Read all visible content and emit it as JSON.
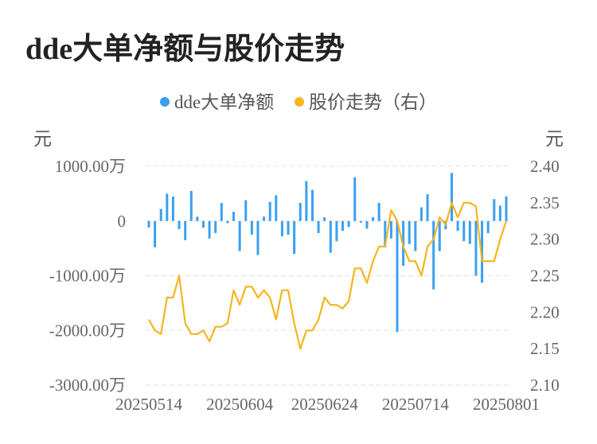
{
  "chart_data": {
    "type": "bar+line",
    "title": "dde大单净额与股价走势",
    "legend": [
      {
        "name": "dde大单净额",
        "color": "#3aa0f0"
      },
      {
        "name": "股价走势（右）",
        "color": "#f5b51e"
      }
    ],
    "legend_position": "top-center",
    "y_left_label": "元",
    "y_right_label": "元",
    "y_left_ticks": [
      "1000.00万",
      "0",
      "-1000.00万",
      "-2000.00万",
      "-3000.00万"
    ],
    "y_right_ticks": [
      "2.40",
      "2.35",
      "2.30",
      "2.25",
      "2.20",
      "2.15",
      "2.10"
    ],
    "x_ticks": [
      "20250514",
      "20250604",
      "20250624",
      "20250714",
      "20250801"
    ],
    "y_left_range_wan": [
      -3000,
      1000
    ],
    "y_right_range": [
      2.1,
      2.4
    ],
    "grid": "horizontal-dashed",
    "series": [
      {
        "name": "dde大单净额",
        "type": "bar",
        "unit": "万",
        "values": [
          -120,
          -480,
          220,
          500,
          450,
          -150,
          -350,
          550,
          80,
          -120,
          -320,
          -220,
          330,
          -40,
          170,
          -550,
          380,
          -250,
          -620,
          80,
          350,
          470,
          -280,
          -250,
          -600,
          330,
          730,
          570,
          -220,
          70,
          -580,
          -370,
          -180,
          -110,
          800,
          -30,
          -140,
          70,
          330,
          -480,
          -320,
          -2030,
          -820,
          -420,
          -550,
          250,
          490,
          -1250,
          -550,
          -150,
          880,
          -180,
          -370,
          -420,
          -1000,
          -1130,
          -220,
          400,
          280,
          450
        ]
      },
      {
        "name": "股价走势（右）",
        "type": "line",
        "values": [
          2.19,
          2.175,
          2.17,
          2.22,
          2.22,
          2.25,
          2.185,
          2.17,
          2.17,
          2.175,
          2.16,
          2.18,
          2.18,
          2.185,
          2.23,
          2.21,
          2.235,
          2.235,
          2.22,
          2.23,
          2.22,
          2.19,
          2.23,
          2.23,
          2.185,
          2.15,
          2.175,
          2.175,
          2.19,
          2.22,
          2.21,
          2.21,
          2.205,
          2.215,
          2.26,
          2.26,
          2.24,
          2.27,
          2.29,
          2.29,
          2.34,
          2.325,
          2.29,
          2.27,
          2.27,
          2.25,
          2.29,
          2.3,
          2.33,
          2.32,
          2.35,
          2.33,
          2.35,
          2.35,
          2.345,
          2.27,
          2.27,
          2.27,
          2.3,
          2.325
        ]
      }
    ]
  }
}
